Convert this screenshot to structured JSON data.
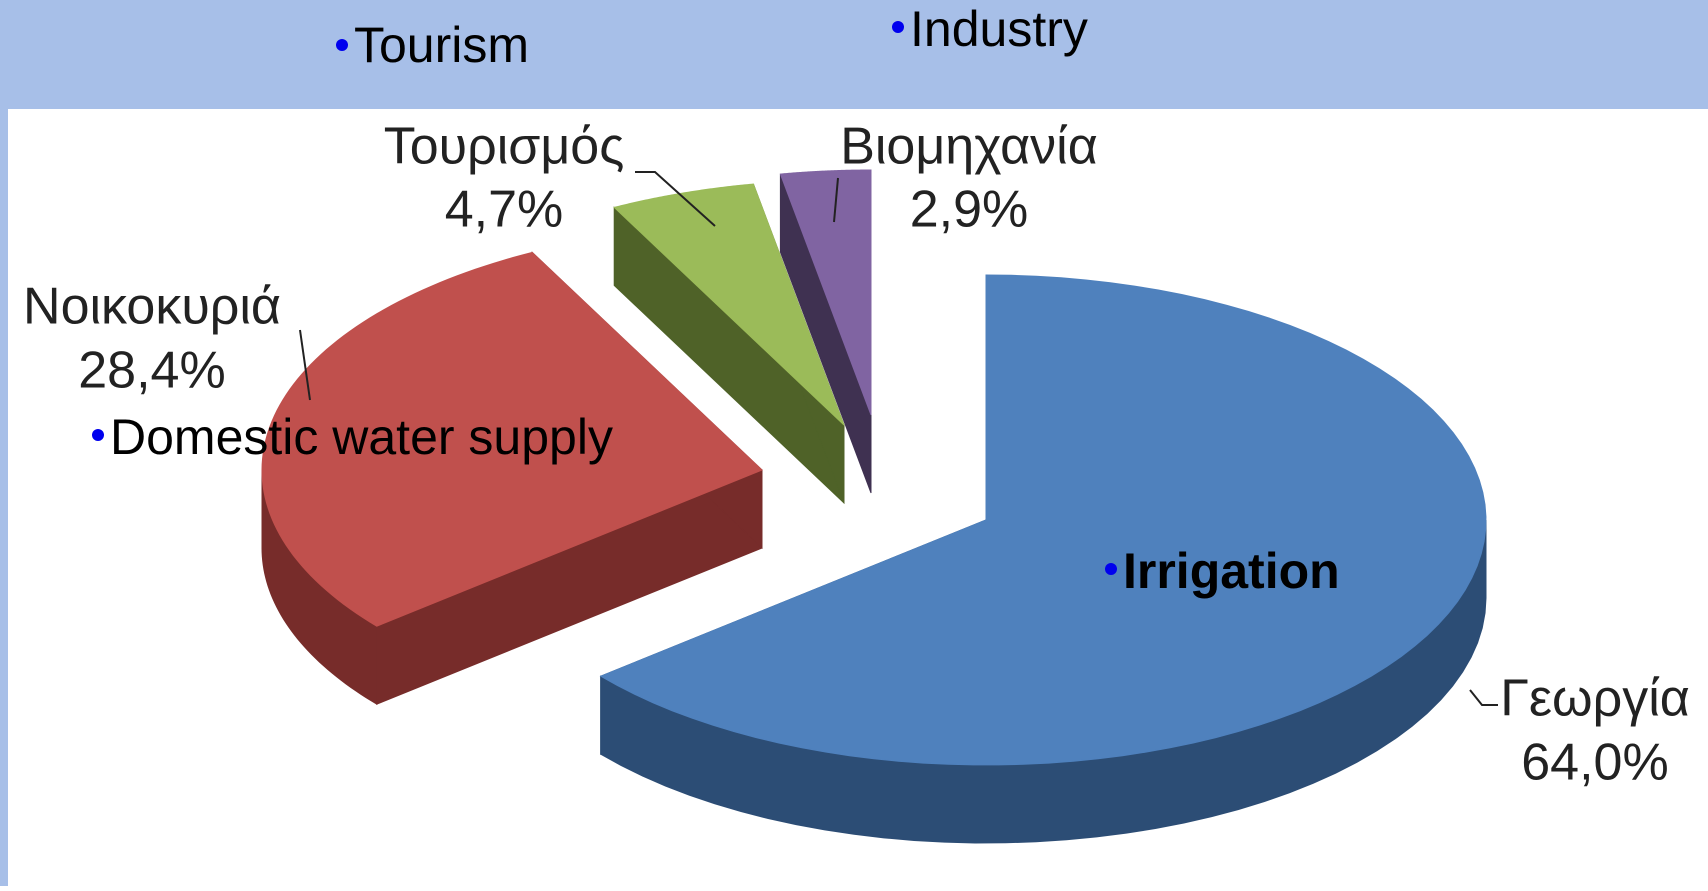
{
  "chart_data": {
    "type": "pie3d",
    "categories": [
      "Γεωργία",
      "Νοικοκυριά",
      "Τουρισμός",
      "Βιομηχανία"
    ],
    "values": [
      64.0,
      28.4,
      4.7,
      2.9
    ],
    "value_labels": [
      "64,0%",
      "28,4%",
      "4,7%",
      "2,9%"
    ],
    "colors": [
      "#4f81bd",
      "#c0504d",
      "#9bbb59",
      "#8064a2"
    ],
    "side_colors": [
      "#2c4d75",
      "#772c2a",
      "#4f6228",
      "#3f3151"
    ],
    "annotations": [
      "Tourism",
      "Industry",
      "Domestic water supply",
      "Irrigation"
    ]
  }
}
